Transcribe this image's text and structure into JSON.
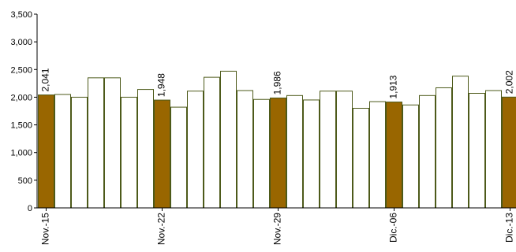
{
  "chart_data": {
    "type": "bar",
    "ylim": [
      0,
      3500
    ],
    "y_ticks": [
      "0",
      "500",
      "1,000",
      "1,500",
      "2,000",
      "2,500",
      "3,000",
      "3,500"
    ],
    "y_tick_values": [
      0,
      500,
      1000,
      1500,
      2000,
      2500,
      3000,
      3500
    ],
    "grid": false,
    "x_tick_labels": [
      {
        "index": 0,
        "label": "Nov.-15"
      },
      {
        "index": 7,
        "label": "Nov.-22"
      },
      {
        "index": 14,
        "label": "Nov.-29"
      },
      {
        "index": 21,
        "label": "Dic.-06"
      },
      {
        "index": 28,
        "label": "Dic.-13"
      }
    ],
    "values": [
      2041,
      2050,
      2000,
      2350,
      2350,
      2000,
      2140,
      1948,
      1820,
      2110,
      2360,
      2470,
      2120,
      1960,
      1986,
      2030,
      1950,
      2110,
      2110,
      1800,
      1920,
      1913,
      1860,
      2030,
      2170,
      2380,
      2070,
      2120,
      2002
    ],
    "highlighted": [
      0,
      7,
      14,
      21,
      28
    ],
    "data_labels": [
      {
        "index": 0,
        "label": "2,041"
      },
      {
        "index": 7,
        "label": "1,948"
      },
      {
        "index": 14,
        "label": "1,986"
      },
      {
        "index": 21,
        "label": "1,913"
      },
      {
        "index": 28,
        "label": "2,002"
      }
    ],
    "colors": {
      "highlight_fill": "#996600",
      "bar_fill": "#ffffff",
      "bar_stroke": "#4d5a1a",
      "axis": "#000000"
    }
  }
}
